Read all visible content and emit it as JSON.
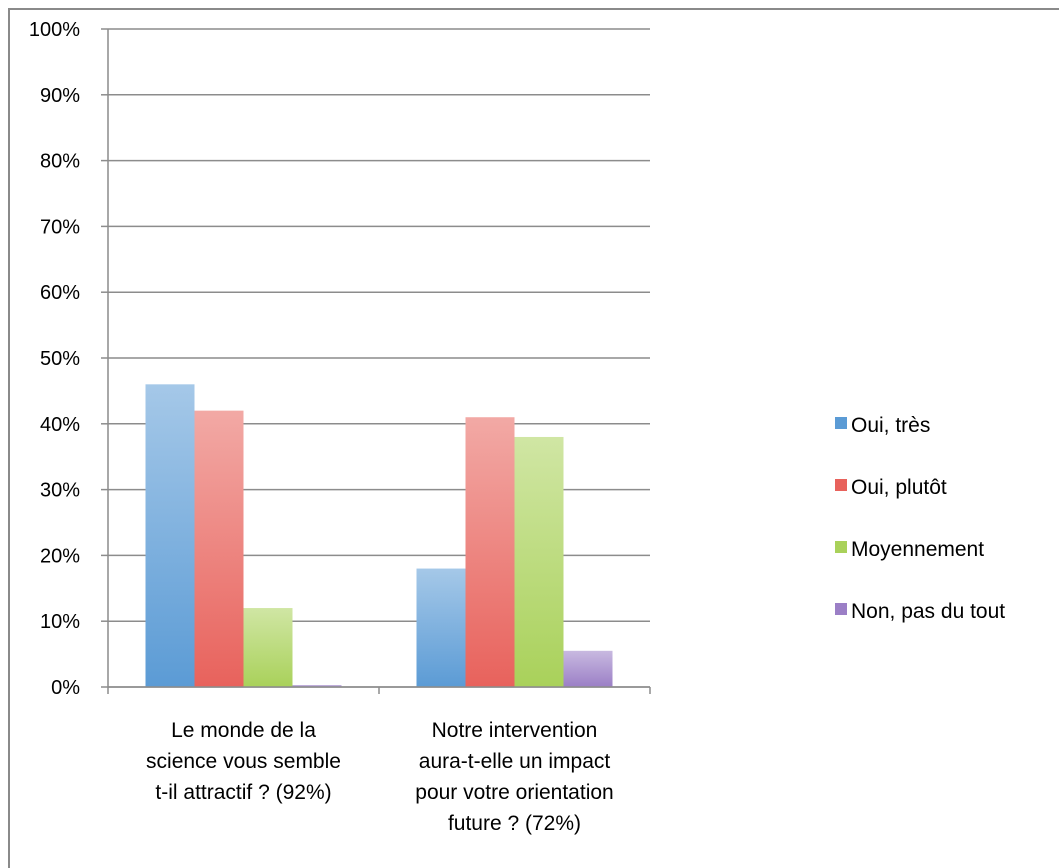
{
  "chart_data": {
    "type": "bar",
    "categories": [
      [
        "Le monde de la",
        "science vous semble",
        "t-il attractif ? (92%)"
      ],
      [
        "Notre intervention",
        "aura-t-elle un impact",
        "pour votre orientation",
        "future ? (72%)"
      ]
    ],
    "series": [
      {
        "name": "Oui, très",
        "values": [
          46,
          18
        ],
        "color": "#5b9bd5"
      },
      {
        "name": "Oui, plutôt",
        "values": [
          42,
          41
        ],
        "color": "#e8625c"
      },
      {
        "name": "Moyennement",
        "values": [
          12,
          38
        ],
        "color": "#a9d15a"
      },
      {
        "name": "Non, pas du tout",
        "values": [
          0.3,
          5.5
        ],
        "color": "#9b7fc6"
      }
    ],
    "yticks": [
      "0%",
      "10%",
      "20%",
      "30%",
      "40%",
      "50%",
      "60%",
      "70%",
      "80%",
      "90%",
      "100%"
    ],
    "ylim": [
      0,
      100
    ],
    "grid": true,
    "legend_position": "right"
  }
}
